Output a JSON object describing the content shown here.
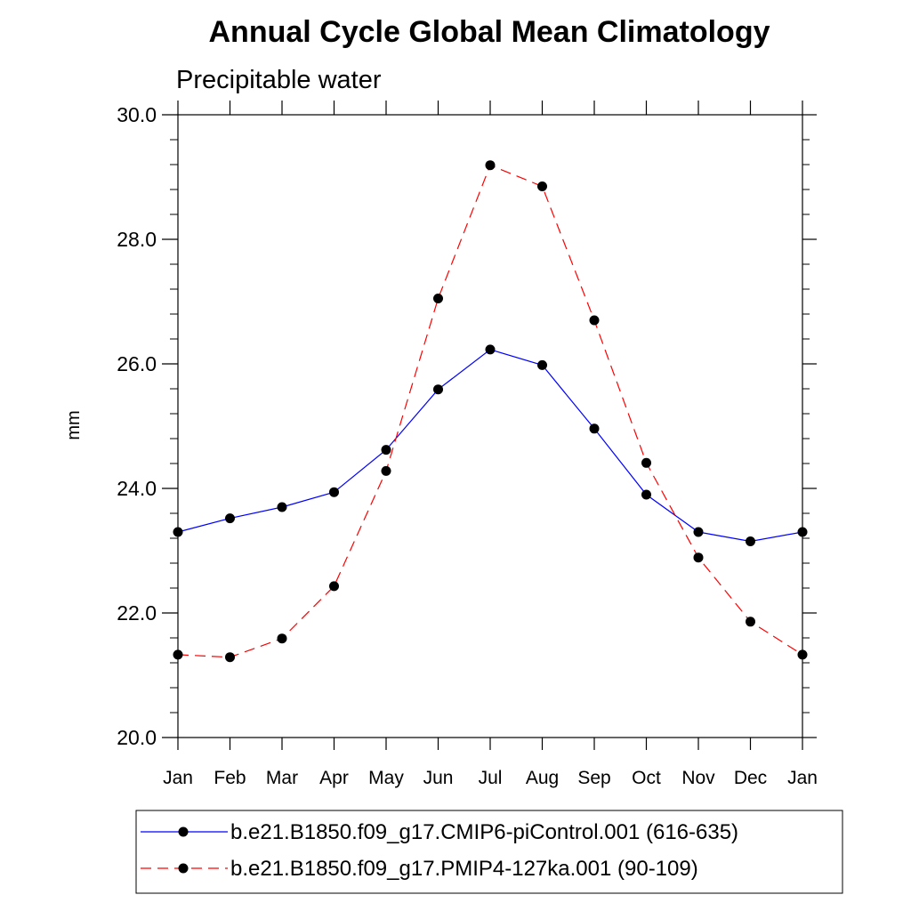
{
  "chart_data": {
    "type": "line",
    "title": "Annual Cycle Global Mean Climatology",
    "subtitle": "Precipitable water",
    "xlabel": "",
    "ylabel": "mm",
    "categories": [
      "Jan",
      "Feb",
      "Mar",
      "Apr",
      "May",
      "Jun",
      "Jul",
      "Aug",
      "Sep",
      "Oct",
      "Nov",
      "Dec",
      "Jan"
    ],
    "ylim": [
      20.0,
      30.0
    ],
    "yticks": [
      "20.0",
      "22.0",
      "24.0",
      "26.0",
      "28.0",
      "30.0"
    ],
    "grid": false,
    "legend_position": "bottom",
    "series": [
      {
        "name": "b.e21.B1850.f09_g17.CMIP6-piControl.001 (616-635)",
        "color": "#0000ff",
        "dashed": false,
        "values": [
          23.3,
          23.52,
          23.7,
          23.94,
          24.62,
          25.59,
          26.23,
          25.98,
          24.96,
          23.9,
          23.3,
          23.15,
          23.3
        ]
      },
      {
        "name": "b.e21.B1850.f09_g17.PMIP4-127ka.001 (90-109)",
        "color": "#ff0000",
        "dashed": true,
        "values": [
          21.33,
          21.29,
          21.59,
          22.43,
          24.28,
          27.05,
          29.19,
          28.85,
          26.7,
          24.41,
          22.89,
          21.86,
          21.33
        ]
      }
    ]
  }
}
